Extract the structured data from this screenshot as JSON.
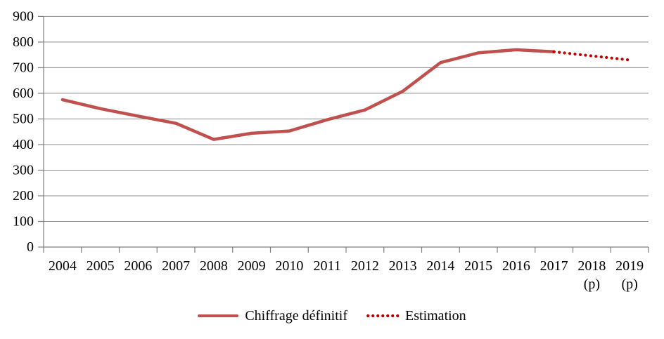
{
  "chart_data": {
    "type": "line",
    "title": "",
    "xlabel": "",
    "ylabel": "",
    "categories": [
      {
        "label": "2004",
        "sub": ""
      },
      {
        "label": "2005",
        "sub": ""
      },
      {
        "label": "2006",
        "sub": ""
      },
      {
        "label": "2007",
        "sub": ""
      },
      {
        "label": "2008",
        "sub": ""
      },
      {
        "label": "2009",
        "sub": ""
      },
      {
        "label": "2010",
        "sub": ""
      },
      {
        "label": "2011",
        "sub": ""
      },
      {
        "label": "2012",
        "sub": ""
      },
      {
        "label": "2013",
        "sub": ""
      },
      {
        "label": "2014",
        "sub": ""
      },
      {
        "label": "2015",
        "sub": ""
      },
      {
        "label": "2016",
        "sub": ""
      },
      {
        "label": "2017",
        "sub": ""
      },
      {
        "label": "2018",
        "sub": "(p)"
      },
      {
        "label": "2019",
        "sub": "(p)"
      }
    ],
    "series": [
      {
        "name": "Chiffrage définitif",
        "style": "solid",
        "color": "#C0504D",
        "values": [
          575,
          540,
          511,
          483,
          420,
          444,
          453,
          497,
          535,
          608,
          720,
          758,
          770,
          762,
          null,
          null
        ]
      },
      {
        "name": "Estimation",
        "style": "dotted",
        "color": "#C00000",
        "values": [
          null,
          null,
          null,
          null,
          null,
          null,
          null,
          null,
          null,
          null,
          null,
          null,
          null,
          762,
          746,
          730
        ]
      }
    ],
    "ylim": [
      0,
      900
    ],
    "yticks": [
      0,
      100,
      200,
      300,
      400,
      500,
      600,
      700,
      800,
      900
    ],
    "grid": "horizontal",
    "legend_position": "bottom",
    "colors": {
      "grid": "#8C8C8C",
      "axis": "#7F7F7F",
      "text": "#000000",
      "background": "#FFFFFF"
    }
  }
}
